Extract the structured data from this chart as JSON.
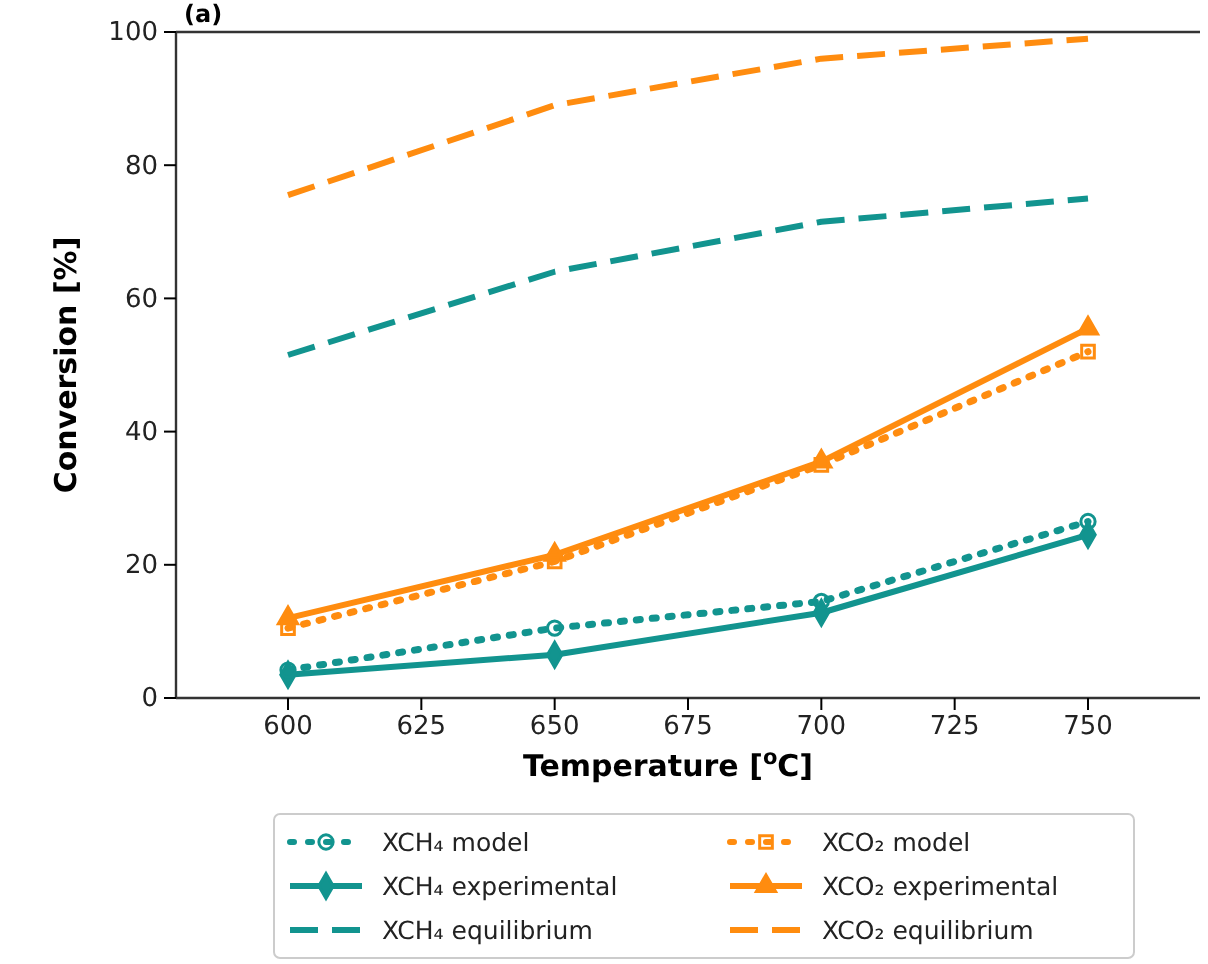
{
  "chart_data": {
    "type": "line",
    "title": "(a)",
    "xlabel": "Temperature [$^{o}$C]",
    "ylabel": "Conversion [%]",
    "x": [
      600,
      650,
      700,
      750
    ],
    "xlim": [
      579,
      771
    ],
    "xticks": [
      600,
      625,
      650,
      675,
      700,
      725,
      750
    ],
    "ylim": [
      0,
      100
    ],
    "yticks": [
      0,
      20,
      40,
      60,
      80,
      100
    ],
    "legend": "bottom",
    "grid": false,
    "series": [
      {
        "name": "XCH₄ model",
        "color": "#12948f",
        "values": [
          4.2,
          10.5,
          14.5,
          26.5
        ],
        "marker": "circle",
        "line_style": "dotted"
      },
      {
        "name": "XCO₂ model",
        "color": "#ff8c0f",
        "values": [
          10.5,
          20.5,
          35,
          52
        ],
        "marker": "square",
        "line_style": "dotted"
      },
      {
        "name": "XCH₄ experimental",
        "color": "#12948f",
        "values": [
          3.5,
          6.5,
          12.8,
          24.5
        ],
        "marker": "diamond",
        "line_style": "solid"
      },
      {
        "name": "XCO₂ experimental",
        "color": "#ff8c0f",
        "values": [
          12,
          21.5,
          35.5,
          55.5
        ],
        "marker": "triangle",
        "line_style": "solid"
      },
      {
        "name": "XCH₄ equilibrium",
        "color": "#12948f",
        "values": [
          51.5,
          64,
          71.5,
          75
        ],
        "marker": "none",
        "line_style": "dashed"
      },
      {
        "name": "XCO₂ equilibrium",
        "color": "#ff8c0f",
        "values": [
          75.5,
          89,
          96,
          99
        ],
        "marker": "none",
        "line_style": "dashed"
      }
    ]
  }
}
